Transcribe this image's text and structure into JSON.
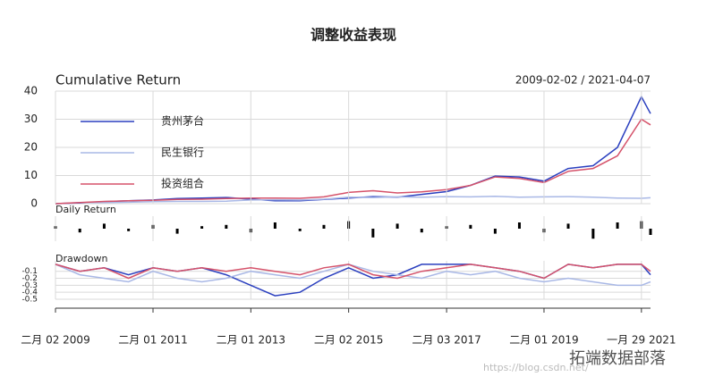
{
  "title": "调整收益表现",
  "watermark": "拓端数据部落",
  "watermark_url": "https://blog.csdn.net/",
  "chart_data": [
    {
      "type": "line",
      "title": "Cumulative Return",
      "subtitle": "2009-02-02 / 2021-04-07",
      "legend": "top-left",
      "x": [
        "2009-02-02",
        "2009-08-03",
        "2010-02-01",
        "2010-08-02",
        "2011-02-01",
        "2011-08-01",
        "2012-02-01",
        "2012-08-01",
        "2013-02-01",
        "2013-08-01",
        "2014-02-03",
        "2014-08-01",
        "2015-02-02",
        "2015-08-03",
        "2016-02-01",
        "2016-08-01",
        "2017-02-03",
        "2017-08-01",
        "2018-02-01",
        "2018-08-01",
        "2019-02-01",
        "2019-08-01",
        "2020-02-03",
        "2020-08-03",
        "2021-01-29",
        "2021-04-07"
      ],
      "xlim": [
        "2009-02-02",
        "2021-04-07"
      ],
      "ylim": [
        0,
        40
      ],
      "yticks": [
        0,
        10,
        20,
        30,
        40
      ],
      "series": [
        {
          "name": "贵州茅台",
          "color": "#2a3fbf",
          "values": [
            0,
            0.3,
            0.7,
            1,
            1.3,
            1.8,
            2,
            2.2,
            1.6,
            1,
            1,
            1.5,
            2,
            2.5,
            2.3,
            3.3,
            4.3,
            6.5,
            9.8,
            9.5,
            8,
            12.5,
            13.5,
            20,
            38,
            32
          ]
        },
        {
          "name": "民生银行",
          "color": "#a9b8e6",
          "values": [
            0,
            0.4,
            0.4,
            0.5,
            0.7,
            0.8,
            0.8,
            0.9,
            1.3,
            1.4,
            1.3,
            1.6,
            2.3,
            2.2,
            2.4,
            2.3,
            2.5,
            2.4,
            2.6,
            2.3,
            2.4,
            2.5,
            2.3,
            2.0,
            1.9,
            2.1
          ]
        },
        {
          "name": "投资组合",
          "color": "#d5526a",
          "values": [
            0,
            0.4,
            0.8,
            1,
            1.2,
            1.5,
            1.6,
            1.8,
            2.0,
            2.0,
            1.9,
            2.4,
            4.0,
            4.6,
            3.8,
            4.2,
            5,
            6.5,
            9.5,
            9,
            7.5,
            11.5,
            12.5,
            17,
            30,
            28
          ]
        }
      ]
    },
    {
      "type": "bar",
      "title": "Daily Return",
      "color": "#000000",
      "x": [
        "2009-02-02",
        "2009-08-03",
        "2010-02-01",
        "2010-08-02",
        "2011-02-01",
        "2011-08-01",
        "2012-02-01",
        "2012-08-01",
        "2013-02-01",
        "2013-08-01",
        "2014-02-03",
        "2014-08-01",
        "2015-02-02",
        "2015-08-03",
        "2016-02-01",
        "2016-08-01",
        "2017-02-03",
        "2017-08-01",
        "2018-02-01",
        "2018-08-01",
        "2019-02-01",
        "2019-08-01",
        "2020-02-03",
        "2020-08-03",
        "2021-01-29",
        "2021-04-07"
      ],
      "xlim": [
        "2009-02-02",
        "2021-04-07"
      ],
      "ylim": [
        -0.1,
        0.1
      ],
      "values": [
        0.02,
        -0.03,
        0.04,
        -0.02,
        0.03,
        -0.04,
        0.02,
        0.03,
        -0.03,
        0.05,
        -0.02,
        0.03,
        0.06,
        -0.07,
        0.04,
        -0.03,
        0.02,
        0.03,
        -0.04,
        0.05,
        -0.03,
        0.04,
        -0.08,
        0.05,
        0.06,
        -0.05
      ]
    },
    {
      "type": "line",
      "title": "Drawdown",
      "x": [
        "2009-02-02",
        "2009-08-03",
        "2010-02-01",
        "2010-08-02",
        "2011-02-01",
        "2011-08-01",
        "2012-02-01",
        "2012-08-01",
        "2013-02-01",
        "2013-08-01",
        "2014-02-03",
        "2014-08-01",
        "2015-02-02",
        "2015-08-03",
        "2016-02-01",
        "2016-08-01",
        "2017-02-03",
        "2017-08-01",
        "2018-02-01",
        "2018-08-01",
        "2019-02-01",
        "2019-08-01",
        "2020-02-03",
        "2020-08-03",
        "2021-01-29",
        "2021-04-07"
      ],
      "xlim": [
        "2009-02-02",
        "2021-04-07"
      ],
      "xticks": [
        {
          "value": "2009-02-02",
          "label": "二月 02 2009"
        },
        {
          "value": "2011-02-01",
          "label": "二月 01 2011"
        },
        {
          "value": "2013-02-01",
          "label": "二月 01 2013"
        },
        {
          "value": "2015-02-02",
          "label": "二月 02 2015"
        },
        {
          "value": "2017-02-03",
          "label": "二月 03 2017"
        },
        {
          "value": "2019-02-01",
          "label": "二月 01 2019"
        },
        {
          "value": "2021-01-29",
          "label": "一月 29 2021"
        }
      ],
      "ylim": [
        -0.5,
        0.05
      ],
      "yticks": [
        -0.1,
        -0.2,
        -0.3,
        -0.4,
        -0.5
      ],
      "series": [
        {
          "color": "#2a3fbf",
          "values": [
            0,
            -0.1,
            -0.05,
            -0.15,
            -0.05,
            -0.1,
            -0.05,
            -0.15,
            -0.3,
            -0.45,
            -0.4,
            -0.2,
            -0.05,
            -0.2,
            -0.15,
            0,
            0,
            0,
            -0.05,
            -0.1,
            -0.2,
            0,
            -0.05,
            0,
            0,
            -0.15
          ]
        },
        {
          "color": "#a9b8e6",
          "values": [
            0,
            -0.15,
            -0.2,
            -0.25,
            -0.1,
            -0.2,
            -0.25,
            -0.2,
            -0.1,
            -0.15,
            -0.2,
            -0.1,
            0,
            -0.1,
            -0.15,
            -0.2,
            -0.1,
            -0.15,
            -0.1,
            -0.2,
            -0.25,
            -0.2,
            -0.25,
            -0.3,
            -0.3,
            -0.25
          ]
        },
        {
          "color": "#d5526a",
          "values": [
            0,
            -0.1,
            -0.05,
            -0.2,
            -0.05,
            -0.1,
            -0.05,
            -0.1,
            -0.05,
            -0.1,
            -0.15,
            -0.05,
            0,
            -0.15,
            -0.2,
            -0.1,
            -0.05,
            0,
            -0.05,
            -0.1,
            -0.2,
            0,
            -0.05,
            0,
            0,
            -0.1
          ]
        }
      ]
    }
  ]
}
